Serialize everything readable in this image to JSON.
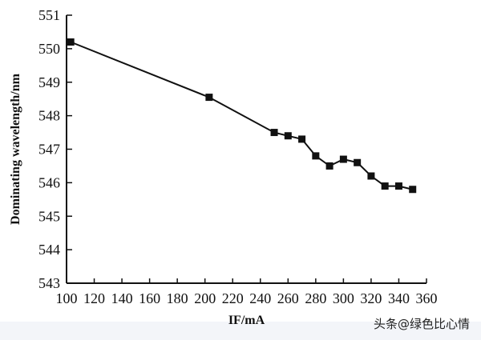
{
  "chart_data": {
    "type": "line",
    "title": "",
    "xlabel": "IF/mA",
    "ylabel": "Dominating wavelength/nm",
    "xlim": [
      100,
      360
    ],
    "ylim": [
      543,
      551
    ],
    "x_ticks": [
      100,
      120,
      140,
      160,
      180,
      200,
      220,
      240,
      260,
      280,
      300,
      320,
      340,
      360
    ],
    "y_ticks": [
      543,
      544,
      545,
      546,
      547,
      548,
      549,
      550,
      551
    ],
    "grid": false,
    "legend": "none",
    "marker": "square",
    "series": [
      {
        "x": [
          103,
          203,
          250,
          260,
          270,
          280,
          290,
          300,
          310,
          320,
          330,
          340,
          350
        ],
        "y": [
          550.2,
          548.55,
          547.5,
          547.4,
          547.3,
          546.8,
          546.5,
          546.7,
          546.6,
          546.2,
          545.9,
          545.9,
          545.8
        ]
      }
    ]
  },
  "watermark": "头条@绿色比心情",
  "colors": {
    "line": "#111111",
    "axis": "#111111",
    "bottom_bar": "#f3f5f9"
  }
}
